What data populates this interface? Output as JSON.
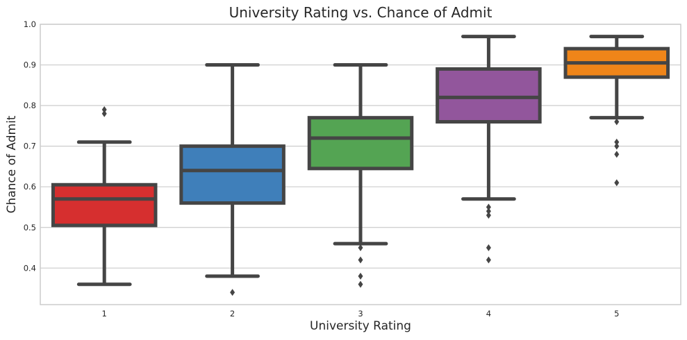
{
  "chart_data": {
    "type": "box",
    "title": "University Rating vs. Chance of Admit",
    "xlabel": "University Rating",
    "ylabel": "Chance of Admit",
    "categories": [
      "1",
      "2",
      "3",
      "4",
      "5"
    ],
    "ylim": [
      0.31,
      1.0
    ],
    "yticks": [
      0.4,
      0.5,
      0.6,
      0.7,
      0.8,
      0.9,
      1.0
    ],
    "ytick_labels": [
      "0.4",
      "0.5",
      "0.6",
      "0.7",
      "0.8",
      "0.9",
      "1.0"
    ],
    "grid": true,
    "legend": "none",
    "boxes": [
      {
        "category": "1",
        "whisker_low": 0.36,
        "q1": 0.505,
        "median": 0.57,
        "q3": 0.605,
        "whisker_high": 0.71,
        "outliers": [
          0.78,
          0.79
        ],
        "color": "#d62f2f"
      },
      {
        "category": "2",
        "whisker_low": 0.38,
        "q1": 0.56,
        "median": 0.64,
        "q3": 0.7,
        "whisker_high": 0.9,
        "outliers": [
          0.34
        ],
        "color": "#3f7fba"
      },
      {
        "category": "3",
        "whisker_low": 0.46,
        "q1": 0.645,
        "median": 0.72,
        "q3": 0.77,
        "whisker_high": 0.9,
        "outliers": [
          0.45,
          0.42,
          0.38,
          0.36
        ],
        "color": "#54a453"
      },
      {
        "category": "4",
        "whisker_low": 0.57,
        "q1": 0.76,
        "median": 0.82,
        "q3": 0.89,
        "whisker_high": 0.97,
        "outliers": [
          0.55,
          0.54,
          0.53,
          0.45,
          0.42
        ],
        "color": "#92569c"
      },
      {
        "category": "5",
        "whisker_low": 0.77,
        "q1": 0.87,
        "median": 0.905,
        "q3": 0.94,
        "whisker_high": 0.97,
        "outliers": [
          0.76,
          0.71,
          0.7,
          0.68,
          0.61
        ],
        "color": "#ef8519"
      }
    ],
    "line_color": "#454545",
    "grid_color": "#cccccc",
    "spine_color": "#cccccc"
  }
}
